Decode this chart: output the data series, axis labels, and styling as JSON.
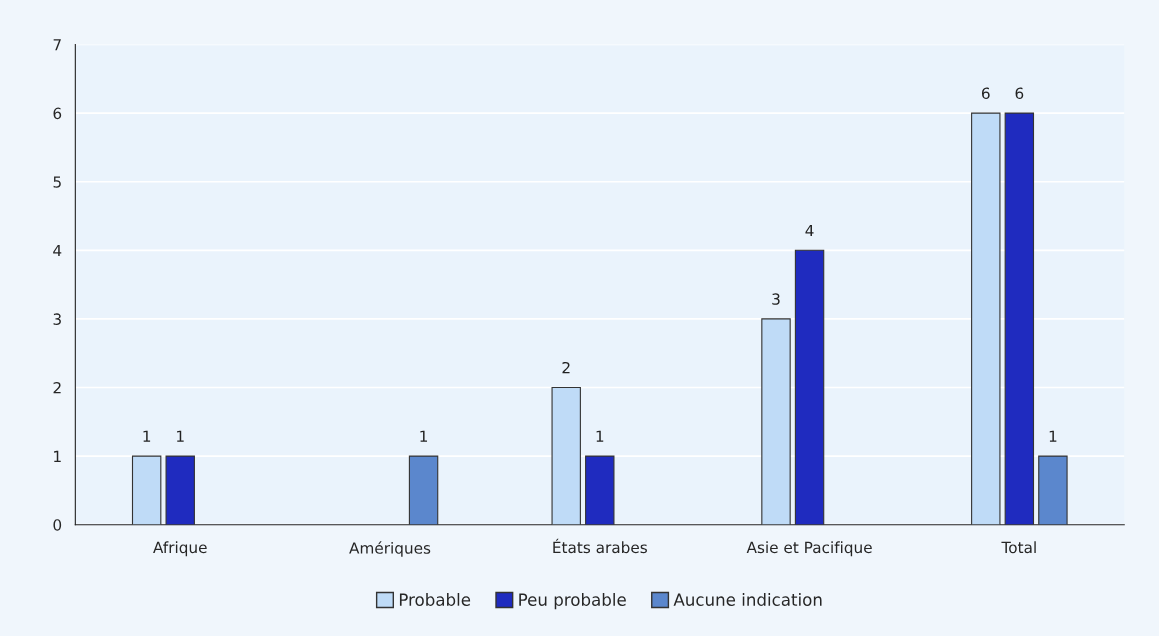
{
  "chart_data": {
    "type": "bar",
    "categories": [
      "Afrique",
      "Amériques",
      "États arabes",
      "Asie et Pacifique",
      "Total"
    ],
    "series": [
      {
        "name": "Probable",
        "color": "#bfdbf7",
        "values": [
          1,
          null,
          2,
          3,
          6
        ]
      },
      {
        "name": "Peu probable",
        "color": "#1f2bbf",
        "values": [
          1,
          null,
          1,
          4,
          6
        ]
      },
      {
        "name": "Aucune indication",
        "color": "#5b87cd",
        "values": [
          null,
          1,
          null,
          null,
          1
        ]
      }
    ],
    "ylim": [
      0,
      7
    ],
    "yticks": [
      0,
      1,
      2,
      3,
      4,
      5,
      6,
      7
    ],
    "grid": "y",
    "legend": "bottom",
    "data_labels": true
  }
}
